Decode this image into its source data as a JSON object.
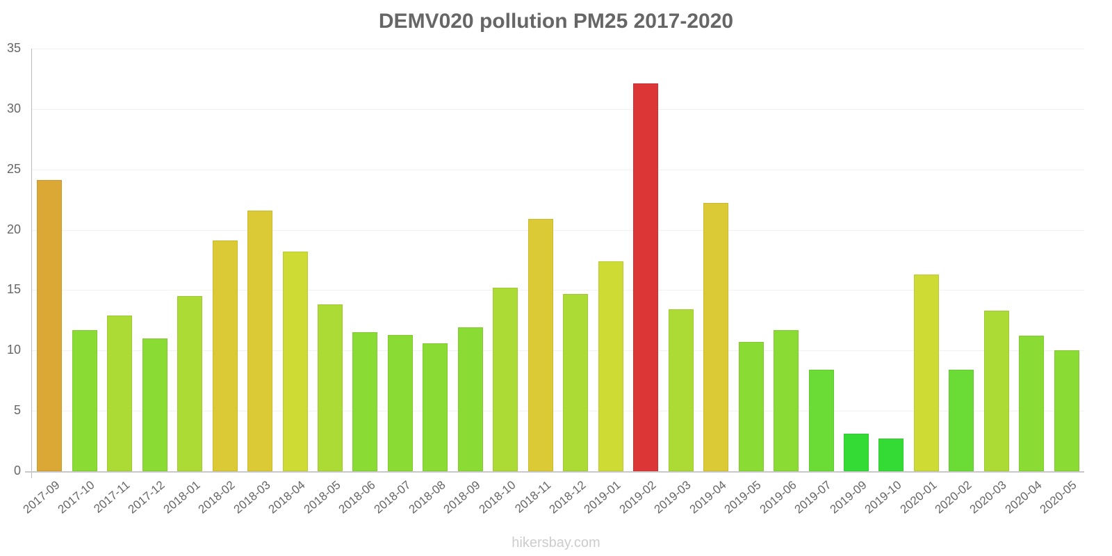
{
  "chart_data": {
    "type": "bar",
    "title": "DEMV020 pollution PM25 2017-2020",
    "xlabel": "",
    "ylabel": "",
    "ylim": [
      0,
      35
    ],
    "yticks": [
      0,
      5,
      10,
      15,
      20,
      25,
      30,
      35
    ],
    "grid": true,
    "legend": null,
    "categories": [
      "2017-09",
      "2017-10",
      "2017-11",
      "2017-12",
      "2018-01",
      "2018-02",
      "2018-03",
      "2018-04",
      "2018-05",
      "2018-06",
      "2018-07",
      "2018-08",
      "2018-09",
      "2018-10",
      "2018-11",
      "2018-12",
      "2019-01",
      "2019-02",
      "2019-03",
      "2019-04",
      "2019-05",
      "2019-06",
      "2019-07",
      "2019-09",
      "2019-10",
      "2020-01",
      "2020-02",
      "2020-03",
      "2020-04",
      "2020-05"
    ],
    "values": [
      24.1,
      11.7,
      12.9,
      11.0,
      14.5,
      19.1,
      21.6,
      18.2,
      13.8,
      11.5,
      11.3,
      10.6,
      11.9,
      15.2,
      20.9,
      14.7,
      17.4,
      32.1,
      13.4,
      22.2,
      10.7,
      11.7,
      8.4,
      3.1,
      2.7,
      16.3,
      8.4,
      13.3,
      11.2,
      10.0
    ],
    "colors": [
      "#dba835",
      "#8bdb35",
      "#acdb35",
      "#8bdb35",
      "#acdb35",
      "#dbca35",
      "#dbca35",
      "#cedb35",
      "#acdb35",
      "#8bdb35",
      "#8bdb35",
      "#8bdb35",
      "#8bdb35",
      "#acdb35",
      "#dbca35",
      "#acdb35",
      "#cedb35",
      "#dc3636",
      "#acdb35",
      "#dbca35",
      "#8bdb35",
      "#8bdb35",
      "#6bdb35",
      "#35db35",
      "#35db35",
      "#cedb35",
      "#6bdb35",
      "#acdb35",
      "#8bdb35",
      "#8bdb35"
    ]
  },
  "watermark": "hikersbay.com"
}
